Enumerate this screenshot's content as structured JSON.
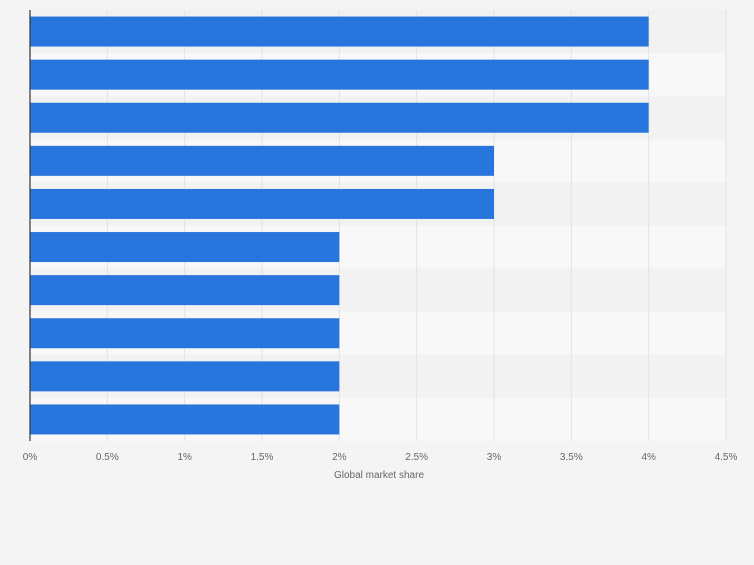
{
  "chart_data": {
    "type": "bar",
    "orientation": "horizontal",
    "title": "",
    "categories": [
      "",
      "",
      "",
      "",
      "",
      "",
      "",
      "",
      "",
      ""
    ],
    "values": [
      4,
      4,
      4,
      3,
      3,
      2,
      2,
      2,
      2,
      2
    ],
    "xlabel": "Global market share",
    "ylabel": "",
    "xlim": [
      0,
      4.5
    ],
    "xticks": [
      0,
      0.5,
      1,
      1.5,
      2,
      2.5,
      3,
      3.5,
      4,
      4.5
    ],
    "xtick_labels": [
      "0%",
      "0.5%",
      "1%",
      "1.5%",
      "2%",
      "2.5%",
      "3%",
      "3.5%",
      "4%",
      "4.5%"
    ],
    "grid": true,
    "legend": "none",
    "colors": {
      "bar": "#2876dd",
      "band_light": "#f8f8f8",
      "band_dark": "#f2f2f2",
      "grid": "#e3e3e3",
      "axis": "#333333",
      "tick_text": "#666666"
    }
  }
}
